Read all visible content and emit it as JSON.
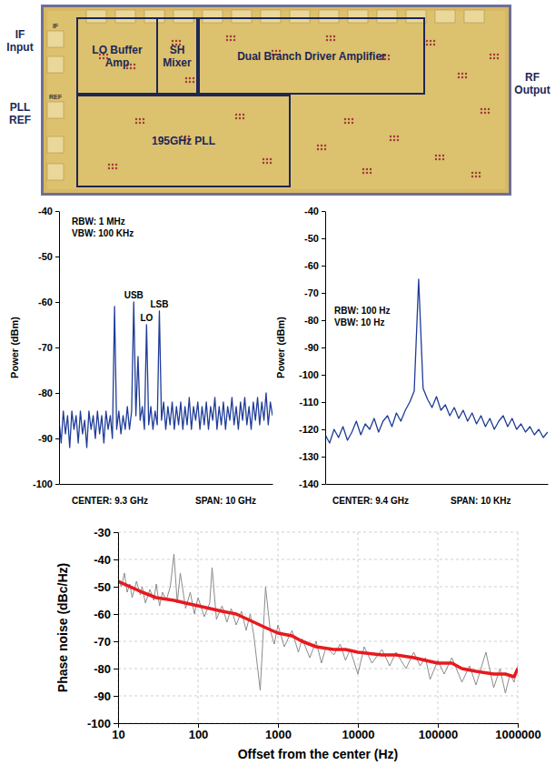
{
  "die_photo": {
    "ports": [
      "IF Input",
      "PLL REF",
      "RF Output"
    ],
    "blocks": [
      "LO Buffer Amp",
      "SH Mixer",
      "Dual Branch Driver Amplifier",
      "195GHz PLL"
    ],
    "pads": [
      "IF",
      "REF"
    ]
  },
  "chart_data": [
    {
      "type": "line",
      "ylabel": "Power (dBm)",
      "notes": [
        "RBW: 1 MHz",
        "VBW: 100 KHz"
      ],
      "footer": [
        "CENTER: 9.3 GHz",
        "SPAN: 10 GHz"
      ],
      "xlim": [
        4.3,
        14.3
      ],
      "ylim": [
        -100,
        -40
      ],
      "yticks": [
        -100,
        -90,
        -80,
        -70,
        -60,
        -50,
        -40
      ],
      "grid": false,
      "tick_labels": "y",
      "x": [
        4.3,
        4.4,
        4.5,
        4.6,
        4.7,
        4.8,
        4.9,
        5.0,
        5.1,
        5.2,
        5.3,
        5.4,
        5.5,
        5.6,
        5.7,
        5.8,
        5.9,
        6.0,
        6.1,
        6.2,
        6.3,
        6.4,
        6.5,
        6.6,
        6.7,
        6.8,
        6.9,
        7.0,
        7.1,
        7.2,
        7.3,
        7.4,
        7.5,
        7.6,
        7.7,
        7.8,
        7.9,
        8.0,
        8.1,
        8.2,
        8.3,
        8.4,
        8.5,
        8.6,
        8.7,
        8.8,
        8.9,
        9.0,
        9.1,
        9.2,
        9.3,
        9.4,
        9.5,
        9.6,
        9.7,
        9.8,
        9.9,
        10.0,
        10.1,
        10.2,
        10.3,
        10.4,
        10.5,
        10.6,
        10.7,
        10.8,
        10.9,
        11.0,
        11.1,
        11.2,
        11.3,
        11.4,
        11.5,
        11.6,
        11.7,
        11.8,
        11.9,
        12.0,
        12.1,
        12.2,
        12.3,
        12.4,
        12.5,
        12.6,
        12.7,
        12.8,
        12.9,
        13.0,
        13.1,
        13.2,
        13.3,
        13.4,
        13.5,
        13.6,
        13.7,
        13.8,
        13.9,
        14.0,
        14.1,
        14.2,
        14.3
      ],
      "series": [
        {
          "color": "#1f3c98",
          "values": [
            -86,
            -91,
            -84,
            -89,
            -85,
            -92,
            -84,
            -88,
            -85,
            -91,
            -84,
            -89,
            -86,
            -92,
            -84,
            -88,
            -85,
            -90,
            -84,
            -89,
            -85,
            -91,
            -84,
            -88,
            -85,
            -90,
            -61,
            -88,
            -84,
            -89,
            -85,
            -88,
            -83,
            -88,
            -84,
            -60,
            -85,
            -72,
            -86,
            -83,
            -88,
            -65,
            -87,
            -83,
            -88,
            -84,
            -87,
            -62,
            -86,
            -82,
            -88,
            -83,
            -87,
            -82,
            -88,
            -83,
            -87,
            -82,
            -88,
            -83,
            -87,
            -81,
            -88,
            -83,
            -86,
            -82,
            -88,
            -83,
            -87,
            -82,
            -88,
            -83,
            -86,
            -81,
            -88,
            -83,
            -87,
            -82,
            -88,
            -83,
            -86,
            -81,
            -87,
            -83,
            -88,
            -82,
            -86,
            -81,
            -87,
            -83,
            -88,
            -82,
            -86,
            -81,
            -87,
            -82,
            -86,
            -80,
            -87,
            -82,
            -85
          ]
        }
      ],
      "annotations": [
        {
          "text": "USB",
          "x": 7.8
        },
        {
          "text": "LO",
          "x": 8.4
        },
        {
          "text": "LSB",
          "x": 9.0
        }
      ]
    },
    {
      "type": "line",
      "ylabel": "Power (dBm)",
      "notes": [
        "RBW: 100 Hz",
        "VBW: 10 Hz"
      ],
      "footer": [
        "CENTER: 9.4 GHz",
        "SPAN: 10 KHz"
      ],
      "xlim": [
        -5,
        5
      ],
      "ylim": [
        -140,
        -40
      ],
      "yticks": [
        -140,
        -130,
        -120,
        -110,
        -100,
        -90,
        -80,
        -70,
        -60,
        -50,
        -40
      ],
      "grid": false,
      "tick_labels": "y",
      "x": [
        -5,
        -4.8,
        -4.6,
        -4.4,
        -4.2,
        -4,
        -3.8,
        -3.6,
        -3.4,
        -3.2,
        -3,
        -2.8,
        -2.6,
        -2.4,
        -2.2,
        -2,
        -1.8,
        -1.6,
        -1.4,
        -1.2,
        -1,
        -0.8,
        -0.6,
        -0.4,
        -0.2,
        0,
        0.2,
        0.4,
        0.6,
        0.8,
        1,
        1.2,
        1.4,
        1.6,
        1.8,
        2,
        2.2,
        2.4,
        2.6,
        2.8,
        3,
        3.2,
        3.4,
        3.6,
        3.8,
        4,
        4.2,
        4.4,
        4.6,
        4.8,
        5
      ],
      "series": [
        {
          "color": "#1f3c98",
          "values": [
            -122,
            -125,
            -120,
            -123,
            -119,
            -124,
            -121,
            -117,
            -122,
            -118,
            -120,
            -116,
            -121,
            -117,
            -115,
            -119,
            -114,
            -117,
            -113,
            -110,
            -106,
            -65,
            -105,
            -109,
            -112,
            -108,
            -113,
            -111,
            -115,
            -112,
            -116,
            -113,
            -117,
            -114,
            -118,
            -115,
            -119,
            -116,
            -120,
            -117,
            -115,
            -119,
            -116,
            -120,
            -118,
            -121,
            -119,
            -122,
            -120,
            -123,
            -121
          ]
        }
      ]
    },
    {
      "type": "line",
      "xlabel": "Offset from the center (Hz)",
      "ylabel": "Phase noise (dBc/Hz)",
      "log": "x",
      "grid": true,
      "xlim": [
        10,
        1000000
      ],
      "ylim": [
        -100,
        -30
      ],
      "xticks": [
        10,
        100,
        1000,
        10000,
        100000,
        1000000
      ],
      "yticks": [
        -100,
        -90,
        -80,
        -70,
        -60,
        -50,
        -40,
        -30
      ],
      "series": [
        {
          "color": "#8c8c8c",
          "x": [
            10,
            11,
            12,
            13,
            14,
            15,
            17,
            19,
            20,
            22,
            25,
            28,
            30,
            33,
            36,
            40,
            45,
            50,
            55,
            60,
            70,
            80,
            90,
            100,
            120,
            140,
            150,
            170,
            200,
            230,
            260,
            300,
            350,
            400,
            450,
            500,
            600,
            700,
            800,
            900,
            1000,
            1200,
            1500,
            1800,
            2000,
            2500,
            3000,
            3500,
            4000,
            5000,
            6000,
            7000,
            8000,
            10000,
            12000,
            15000,
            20000,
            25000,
            30000,
            40000,
            50000,
            60000,
            70000,
            80000,
            100000,
            120000,
            150000,
            200000,
            250000,
            300000,
            400000,
            500000,
            600000,
            700000,
            800000,
            900000,
            1000000
          ],
          "values": [
            -47,
            -50,
            -45,
            -52,
            -49,
            -54,
            -48,
            -53,
            -50,
            -56,
            -51,
            -55,
            -49,
            -57,
            -52,
            -55,
            -50,
            -38,
            -56,
            -45,
            -58,
            -52,
            -60,
            -54,
            -61,
            -56,
            -43,
            -62,
            -57,
            -63,
            -58,
            -64,
            -59,
            -66,
            -60,
            -68,
            -88,
            -50,
            -66,
            -71,
            -64,
            -72,
            -66,
            -74,
            -69,
            -76,
            -70,
            -78,
            -72,
            -75,
            -71,
            -77,
            -73,
            -82,
            -72,
            -78,
            -73,
            -79,
            -74,
            -80,
            -74,
            -79,
            -76,
            -84,
            -77,
            -82,
            -76,
            -85,
            -79,
            -86,
            -74,
            -87,
            -80,
            -89,
            -82,
            -85,
            -79
          ]
        },
        {
          "color": "#e8191e",
          "x": [
            10,
            20,
            30,
            50,
            70,
            100,
            200,
            300,
            500,
            700,
            1000,
            1500,
            2000,
            3000,
            5000,
            7000,
            10000,
            20000,
            30000,
            50000,
            70000,
            100000,
            150000,
            200000,
            300000,
            500000,
            700000,
            900000,
            1000000
          ],
          "values": [
            -48,
            -52,
            -54,
            -55,
            -56,
            -57,
            -59,
            -60,
            -63,
            -65,
            -67,
            -68,
            -70,
            -72,
            -73,
            -73,
            -74,
            -75,
            -75,
            -76,
            -77,
            -78,
            -78,
            -80,
            -81,
            -82,
            -82,
            -83,
            -80
          ]
        }
      ]
    }
  ]
}
